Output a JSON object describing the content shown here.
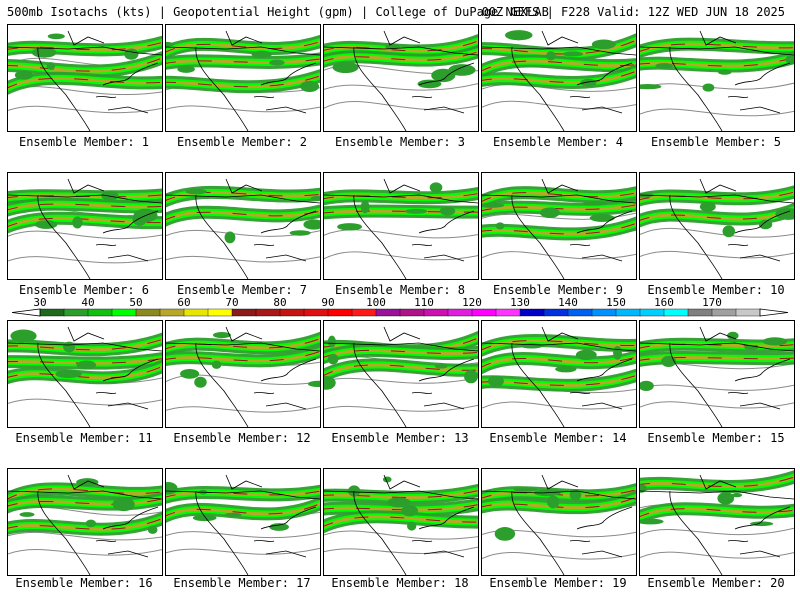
{
  "header": {
    "title_left": "500mb Isotachs (kts) | Geopotential Height (gpm) | College of DuPage NEXLAB",
    "title_right": "00Z GEFS | F228 Valid: 12Z WED JUN 18 2025"
  },
  "colorbar": {
    "labels": [
      "30",
      "40",
      "50",
      "60",
      "70",
      "80",
      "90",
      "100",
      "110",
      "120",
      "130",
      "140",
      "150",
      "160",
      "170"
    ],
    "colors": [
      "#1e6b1e",
      "#2c9e2c",
      "#11c011",
      "#00ff00",
      "#8a8a1e",
      "#b8a82a",
      "#e6e600",
      "#ffff00",
      "#8b1a1a",
      "#a81818",
      "#c41414",
      "#e01010",
      "#ff0000",
      "#ff1a1a",
      "#9a129a",
      "#b0128a",
      "#cc10b0",
      "#e01ee0",
      "#ff00ff",
      "#ff33ff",
      "#0000c8",
      "#0030e0",
      "#0060f0",
      "#0090ff",
      "#00b8ff",
      "#00d0ff",
      "#00ffff",
      "#808080",
      "#a0a0a0",
      "#c8c8c8"
    ]
  },
  "caption_prefix": "Ensemble Member:",
  "members": [
    {
      "label": "Ensemble Member: 1"
    },
    {
      "label": "Ensemble Member: 2"
    },
    {
      "label": "Ensemble Member: 3"
    },
    {
      "label": "Ensemble Member: 4"
    },
    {
      "label": "Ensemble Member: 5"
    },
    {
      "label": "Ensemble Member: 6"
    },
    {
      "label": "Ensemble Member: 7"
    },
    {
      "label": "Ensemble Member: 8"
    },
    {
      "label": "Ensemble Member: 9"
    },
    {
      "label": "Ensemble Member: 10"
    },
    {
      "label": "Ensemble Member: 11"
    },
    {
      "label": "Ensemble Member: 12"
    },
    {
      "label": "Ensemble Member: 13"
    },
    {
      "label": "Ensemble Member: 14"
    },
    {
      "label": "Ensemble Member: 15"
    },
    {
      "label": "Ensemble Member: 16"
    },
    {
      "label": "Ensemble Member: 17"
    },
    {
      "label": "Ensemble Member: 18"
    },
    {
      "label": "Ensemble Member: 19"
    },
    {
      "label": "Ensemble Member: 20"
    }
  ]
}
